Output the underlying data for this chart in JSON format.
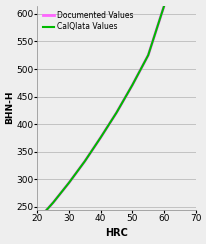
{
  "title": "",
  "xlabel": "HRC",
  "ylabel": "BHN-H",
  "xlim": [
    20,
    70
  ],
  "ylim": [
    245,
    615
  ],
  "yticks": [
    250,
    300,
    350,
    400,
    450,
    500,
    550,
    600
  ],
  "xticks": [
    20,
    30,
    40,
    50,
    60,
    70
  ],
  "hrc_doc": [
    20,
    25,
    30,
    35,
    40,
    45,
    50,
    55,
    60
  ],
  "bhn_doc": [
    226,
    258,
    294,
    333,
    376,
    421,
    471,
    525,
    614
  ],
  "hrc_cal": [
    20,
    25,
    30,
    35,
    40,
    45,
    50,
    55,
    60
  ],
  "bhn_cal": [
    226,
    258,
    294,
    333,
    376,
    421,
    471,
    525,
    614
  ],
  "color_doc": "#ff66ff",
  "color_cal": "#00bb00",
  "legend_doc": "Documented Values",
  "legend_cal": "CalQlata Values",
  "bg_color": "#eeeeee",
  "grid_color": "#bbbbbb",
  "linewidth_doc": 2.0,
  "linewidth_cal": 1.5
}
